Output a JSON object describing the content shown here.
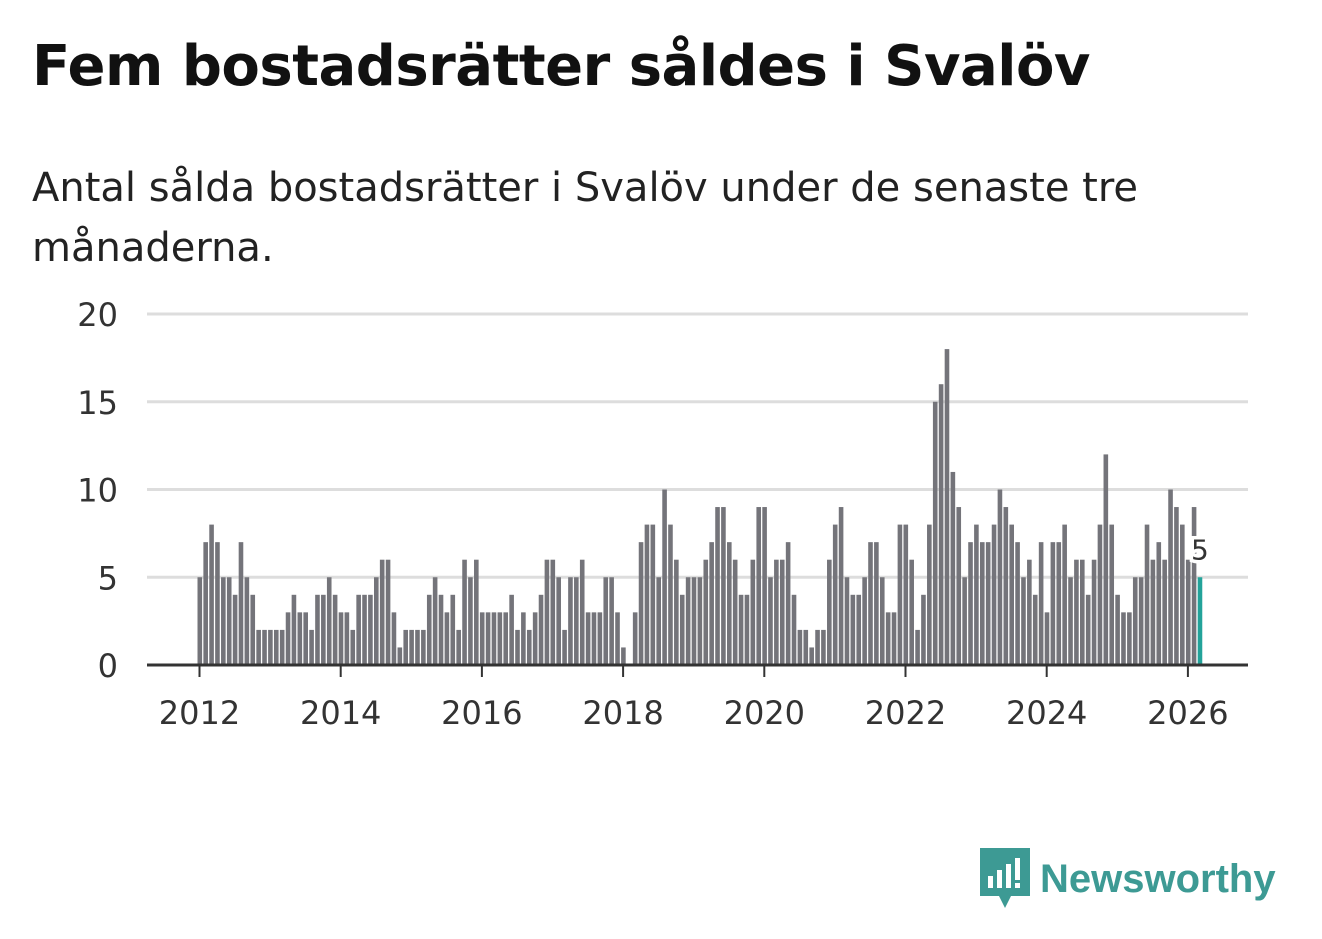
{
  "header": {
    "title": "Fem bostadsrätter såldes i Svalöv",
    "subtitle": "Antal sålda bostadsrätter i Svalöv under de senaste tre månaderna."
  },
  "brand": {
    "name": "Newsworthy",
    "icon": "newsworthy-logo-icon",
    "color": "#3d9a94"
  },
  "colors": {
    "bar": "#74747a",
    "highlight": "#23a39a",
    "grid": "#dddddd",
    "axis": "#333333"
  },
  "chart_data": {
    "type": "bar",
    "title": "Fem bostadsrätter såldes i Svalöv",
    "subtitle": "Antal sålda bostadsrätter i Svalöv under de senaste tre månaderna.",
    "xlabel": "",
    "ylabel": "",
    "ylim": [
      0,
      20
    ],
    "yticks": [
      0,
      5,
      10,
      15,
      20
    ],
    "grid": true,
    "start": "2012-01",
    "end": "2026-01",
    "xticks": [
      "2012",
      "2014",
      "2016",
      "2018",
      "2020",
      "2022",
      "2024",
      "2026"
    ],
    "values": [
      5,
      7,
      8,
      7,
      5,
      5,
      4,
      7,
      5,
      4,
      2,
      2,
      2,
      2,
      2,
      3,
      4,
      3,
      3,
      2,
      4,
      4,
      5,
      4,
      3,
      3,
      2,
      4,
      4,
      4,
      5,
      6,
      6,
      3,
      1,
      2,
      2,
      2,
      2,
      4,
      5,
      4,
      3,
      4,
      2,
      6,
      5,
      6,
      3,
      3,
      3,
      3,
      3,
      4,
      2,
      3,
      2,
      3,
      4,
      6,
      6,
      5,
      2,
      5,
      5,
      6,
      3,
      3,
      3,
      5,
      5,
      3,
      1,
      0,
      3,
      7,
      8,
      8,
      5,
      10,
      8,
      6,
      4,
      5,
      5,
      5,
      6,
      7,
      9,
      9,
      7,
      6,
      4,
      4,
      6,
      9,
      9,
      5,
      6,
      6,
      7,
      4,
      2,
      2,
      1,
      2,
      2,
      6,
      8,
      9,
      5,
      4,
      4,
      5,
      7,
      7,
      5,
      3,
      3,
      8,
      8,
      6,
      2,
      4,
      8,
      15,
      16,
      18,
      11,
      9,
      5,
      7,
      8,
      7,
      7,
      8,
      10,
      9,
      8,
      7,
      5,
      6,
      4,
      7,
      3,
      7,
      7,
      8,
      5,
      6,
      6,
      4,
      6,
      8,
      12,
      8,
      4,
      3,
      3,
      5,
      5,
      8,
      6,
      7,
      6,
      10,
      9,
      8,
      6,
      9,
      5
    ],
    "highlight": {
      "label": "5",
      "value": 5,
      "period": "2026-01"
    }
  }
}
